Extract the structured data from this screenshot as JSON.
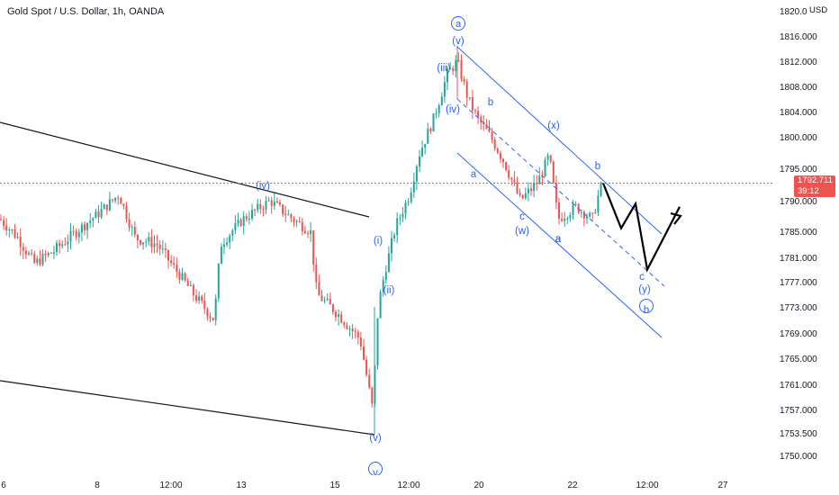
{
  "chart_title": "Gold Spot / U.S. Dollar, 1h, OANDA",
  "unit_badge": "USD",
  "chart_data": {
    "type": "candlestick",
    "title": "Gold Spot / U.S. Dollar, 1h, OANDA",
    "ylim": [
      1748,
      1820
    ],
    "y_ticks": [
      "1816.000",
      "1812.000",
      "1808.000",
      "1804.000",
      "1800.000",
      "1795.000",
      "1790.000",
      "1785.000",
      "1781.000",
      "1777.000",
      "1773.000",
      "1769.000",
      "1765.000",
      "1761.000",
      "1757.000",
      "1753.500",
      "1750.000"
    ],
    "y_top_partial": "1820.000",
    "x_ticks": [
      "6",
      "8",
      "12:00",
      "13",
      "15",
      "12:00",
      "20",
      "22",
      "12:00",
      "27"
    ],
    "last_price": "1792.711",
    "countdown": "39:12",
    "colors": {
      "up": "#26a69a",
      "down": "#ef5350",
      "wave": "#2962ff",
      "trend": "#131722",
      "last_price": "#ef5350"
    },
    "wave_labels": [
      "(iv)",
      "(i)",
      "(ii)",
      "(v)",
      "v",
      "(iii)",
      "(iv)",
      "(v)",
      "a",
      "a",
      "b",
      "c",
      "(w)",
      "(x)",
      "a",
      "b",
      "c",
      "(y)",
      "b"
    ],
    "projection_path": [
      [
        1792.7,
        1792.7
      ],
      [
        1785.5
      ],
      [
        1789.5
      ],
      [
        1779
      ],
      [
        1789
      ]
    ]
  },
  "grid": false
}
